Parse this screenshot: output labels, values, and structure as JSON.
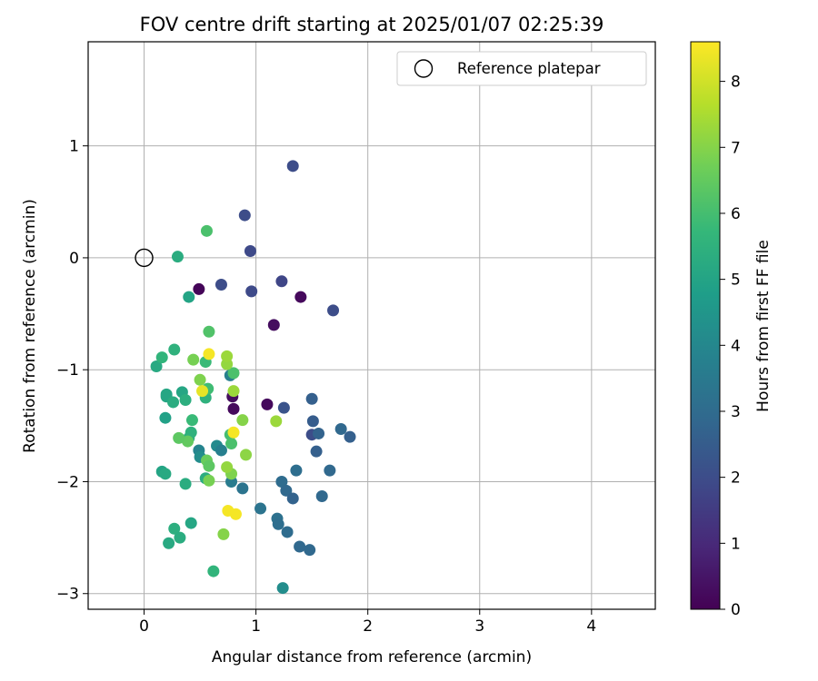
{
  "chart_data": {
    "type": "scatter",
    "title": "FOV centre drift starting at 2025/01/07 02:25:39",
    "xlabel": "Angular distance from reference (arcmin)",
    "ylabel": "Rotation from reference (arcmin)",
    "xlim": [
      -0.5,
      4.57
    ],
    "ylim": [
      -3.14,
      1.93
    ],
    "x_ticks": [
      0,
      1,
      2,
      3,
      4
    ],
    "y_ticks": [
      -3,
      -2,
      -1,
      0,
      1
    ],
    "grid": true,
    "legend": {
      "placement": "top-right",
      "entries": [
        "Reference platepar"
      ]
    },
    "reference_point": {
      "label": "Reference platepar",
      "x": 0,
      "y": 0
    },
    "colorbar": {
      "label": "Hours from first FF file",
      "colormap": "viridis",
      "range": [
        0,
        8.6
      ],
      "ticks": [
        0,
        1,
        2,
        3,
        4,
        5,
        6,
        7,
        8
      ]
    },
    "series": [
      {
        "points": [
          {
            "x": 0.49,
            "y": -0.28,
            "c": 0.1
          },
          {
            "x": 1.4,
            "y": -0.35,
            "c": 0.2
          },
          {
            "x": 1.16,
            "y": -0.6,
            "c": 0.3
          },
          {
            "x": 0.79,
            "y": -1.24,
            "c": 0.3
          },
          {
            "x": 0.8,
            "y": -1.35,
            "c": 0.2
          },
          {
            "x": 1.1,
            "y": -1.31,
            "c": 0.2
          },
          {
            "x": 1.33,
            "y": 0.82,
            "c": 2.0
          },
          {
            "x": 0.9,
            "y": 0.38,
            "c": 2.0
          },
          {
            "x": 0.95,
            "y": 0.06,
            "c": 1.9
          },
          {
            "x": 0.69,
            "y": -0.24,
            "c": 2.0
          },
          {
            "x": 0.96,
            "y": -0.3,
            "c": 1.9
          },
          {
            "x": 1.23,
            "y": -0.21,
            "c": 1.8
          },
          {
            "x": 1.69,
            "y": -0.47,
            "c": 2.0
          },
          {
            "x": 1.25,
            "y": -1.34,
            "c": 2.2
          },
          {
            "x": 1.5,
            "y": -1.26,
            "c": 2.6
          },
          {
            "x": 1.51,
            "y": -1.46,
            "c": 2.5
          },
          {
            "x": 1.5,
            "y": -1.58,
            "c": 2.0
          },
          {
            "x": 1.56,
            "y": -1.57,
            "c": 2.7
          },
          {
            "x": 1.54,
            "y": -1.73,
            "c": 2.6
          },
          {
            "x": 1.76,
            "y": -1.53,
            "c": 2.9
          },
          {
            "x": 1.84,
            "y": -1.6,
            "c": 2.6
          },
          {
            "x": 1.66,
            "y": -1.9,
            "c": 2.9
          },
          {
            "x": 1.36,
            "y": -1.9,
            "c": 3.1
          },
          {
            "x": 1.23,
            "y": -2.0,
            "c": 3.0
          },
          {
            "x": 1.27,
            "y": -2.08,
            "c": 2.9
          },
          {
            "x": 1.33,
            "y": -2.15,
            "c": 2.7
          },
          {
            "x": 1.59,
            "y": -2.13,
            "c": 2.9
          },
          {
            "x": 1.04,
            "y": -2.24,
            "c": 3.3
          },
          {
            "x": 1.19,
            "y": -2.33,
            "c": 3.2
          },
          {
            "x": 1.2,
            "y": -2.38,
            "c": 3.1
          },
          {
            "x": 1.28,
            "y": -2.45,
            "c": 3.0
          },
          {
            "x": 1.39,
            "y": -2.58,
            "c": 2.9
          },
          {
            "x": 1.48,
            "y": -2.61,
            "c": 2.9
          },
          {
            "x": 0.88,
            "y": -2.06,
            "c": 3.3
          },
          {
            "x": 0.78,
            "y": -2.0,
            "c": 3.6
          },
          {
            "x": 0.77,
            "y": -1.05,
            "c": 3.7
          },
          {
            "x": 0.65,
            "y": -1.68,
            "c": 4.1
          },
          {
            "x": 0.69,
            "y": -1.72,
            "c": 3.7
          },
          {
            "x": 0.49,
            "y": -1.72,
            "c": 3.9
          },
          {
            "x": 0.5,
            "y": -1.78,
            "c": 4.2
          },
          {
            "x": 1.24,
            "y": -2.95,
            "c": 4.2
          },
          {
            "x": 0.3,
            "y": 0.01,
            "c": 5.3
          },
          {
            "x": 0.4,
            "y": -0.35,
            "c": 5.0
          },
          {
            "x": 0.11,
            "y": -0.97,
            "c": 5.2
          },
          {
            "x": 0.2,
            "y": -1.22,
            "c": 5.1
          },
          {
            "x": 0.2,
            "y": -1.24,
            "c": 5.1
          },
          {
            "x": 0.26,
            "y": -1.29,
            "c": 5.3
          },
          {
            "x": 0.34,
            "y": -1.2,
            "c": 5.1
          },
          {
            "x": 0.37,
            "y": -1.27,
            "c": 5.4
          },
          {
            "x": 0.19,
            "y": -1.43,
            "c": 4.9
          },
          {
            "x": 0.16,
            "y": -1.91,
            "c": 5.0
          },
          {
            "x": 0.19,
            "y": -1.93,
            "c": 5.2
          },
          {
            "x": 0.37,
            "y": -2.02,
            "c": 5.3
          },
          {
            "x": 0.42,
            "y": -2.37,
            "c": 5.1
          },
          {
            "x": 0.27,
            "y": -2.42,
            "c": 5.4
          },
          {
            "x": 0.32,
            "y": -2.5,
            "c": 5.3
          },
          {
            "x": 0.22,
            "y": -2.55,
            "c": 5.2
          },
          {
            "x": 0.62,
            "y": -2.8,
            "c": 5.6
          },
          {
            "x": 0.55,
            "y": -1.97,
            "c": 5.3
          },
          {
            "x": 0.4,
            "y": -1.61,
            "c": 5.4
          },
          {
            "x": 0.42,
            "y": -1.56,
            "c": 5.5
          },
          {
            "x": 0.43,
            "y": -1.45,
            "c": 5.8
          },
          {
            "x": 0.55,
            "y": -1.25,
            "c": 5.5
          },
          {
            "x": 0.57,
            "y": -1.17,
            "c": 5.9
          },
          {
            "x": 0.27,
            "y": -0.82,
            "c": 5.5
          },
          {
            "x": 0.16,
            "y": -0.89,
            "c": 5.6
          },
          {
            "x": 0.55,
            "y": -0.93,
            "c": 5.8
          },
          {
            "x": 0.56,
            "y": 0.24,
            "c": 6.1
          },
          {
            "x": 0.58,
            "y": -0.66,
            "c": 6.2
          },
          {
            "x": 0.8,
            "y": -1.03,
            "c": 6.1
          },
          {
            "x": 0.77,
            "y": -1.58,
            "c": 6.0
          },
          {
            "x": 0.78,
            "y": -1.66,
            "c": 6.1
          },
          {
            "x": 0.39,
            "y": -1.64,
            "c": 6.5
          },
          {
            "x": 0.31,
            "y": -1.61,
            "c": 6.4
          },
          {
            "x": 0.56,
            "y": -1.81,
            "c": 6.6
          },
          {
            "x": 0.58,
            "y": -1.86,
            "c": 6.4
          },
          {
            "x": 0.58,
            "y": -1.99,
            "c": 6.8
          },
          {
            "x": 0.78,
            "y": -1.93,
            "c": 6.9
          },
          {
            "x": 0.44,
            "y": -0.91,
            "c": 6.8
          },
          {
            "x": 0.5,
            "y": -1.09,
            "c": 6.9
          },
          {
            "x": 0.74,
            "y": -0.95,
            "c": 7.2
          },
          {
            "x": 0.74,
            "y": -0.88,
            "c": 7.3
          },
          {
            "x": 0.8,
            "y": -1.19,
            "c": 7.3
          },
          {
            "x": 0.88,
            "y": -1.45,
            "c": 7.0
          },
          {
            "x": 0.91,
            "y": -1.76,
            "c": 7.1
          },
          {
            "x": 0.74,
            "y": -1.87,
            "c": 7.2
          },
          {
            "x": 0.71,
            "y": -2.47,
            "c": 7.0
          },
          {
            "x": 1.18,
            "y": -1.46,
            "c": 7.3
          },
          {
            "x": 0.58,
            "y": -0.86,
            "c": 8.5
          },
          {
            "x": 0.52,
            "y": -1.19,
            "c": 8.3
          },
          {
            "x": 0.8,
            "y": -1.56,
            "c": 8.5
          },
          {
            "x": 0.75,
            "y": -2.26,
            "c": 8.5
          },
          {
            "x": 0.82,
            "y": -2.29,
            "c": 8.5
          }
        ]
      }
    ]
  }
}
